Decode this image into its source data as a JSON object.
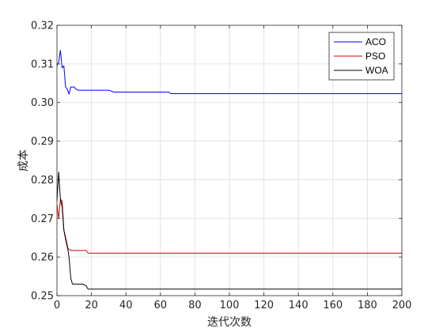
{
  "chart_data": {
    "type": "line",
    "xlabel": "迭代次数",
    "ylabel": "成本",
    "xlim": [
      0,
      200
    ],
    "ylim": [
      0.25,
      0.32
    ],
    "xticks": [
      0,
      20,
      40,
      60,
      80,
      100,
      120,
      140,
      160,
      180,
      200
    ],
    "yticks": [
      0.25,
      0.26,
      0.27,
      0.28,
      0.29,
      0.3,
      0.31,
      0.32
    ],
    "grid": true,
    "legend_position": "top-right",
    "series": [
      {
        "name": "ACO",
        "color": "#0000ff",
        "x": [
          0,
          1,
          2,
          3,
          4,
          5,
          6,
          7,
          8,
          9,
          10,
          11,
          12,
          14,
          16,
          20,
          25,
          30,
          33,
          40,
          50,
          60,
          65,
          66,
          80,
          100,
          150,
          200
        ],
        "y": [
          0.3095,
          0.3105,
          0.3135,
          0.309,
          0.3095,
          0.304,
          0.3035,
          0.3022,
          0.304,
          0.304,
          0.304,
          0.3035,
          0.3032,
          0.3032,
          0.3032,
          0.3032,
          0.3032,
          0.3032,
          0.3027,
          0.3027,
          0.3027,
          0.3027,
          0.3027,
          0.3023,
          0.3023,
          0.3023,
          0.3023,
          0.3023
        ]
      },
      {
        "name": "PSO",
        "color": "#d40000",
        "x": [
          0,
          1,
          2,
          3,
          4,
          5,
          6,
          7,
          8,
          10,
          12,
          15,
          17,
          18,
          20,
          40,
          100,
          200
        ],
        "y": [
          0.2735,
          0.27,
          0.275,
          0.2745,
          0.267,
          0.2645,
          0.2625,
          0.262,
          0.2617,
          0.2617,
          0.2617,
          0.2617,
          0.2617,
          0.261,
          0.261,
          0.261,
          0.261,
          0.261
        ]
      },
      {
        "name": "WOA",
        "color": "#000000",
        "x": [
          0,
          1,
          2,
          3,
          4,
          5,
          6,
          7,
          8,
          9,
          10,
          12,
          15,
          17,
          18,
          20,
          40,
          100,
          200
        ],
        "y": [
          0.2745,
          0.282,
          0.275,
          0.273,
          0.267,
          0.265,
          0.263,
          0.26,
          0.2545,
          0.253,
          0.253,
          0.253,
          0.253,
          0.2525,
          0.2517,
          0.2517,
          0.2517,
          0.2517,
          0.2517
        ]
      }
    ]
  }
}
